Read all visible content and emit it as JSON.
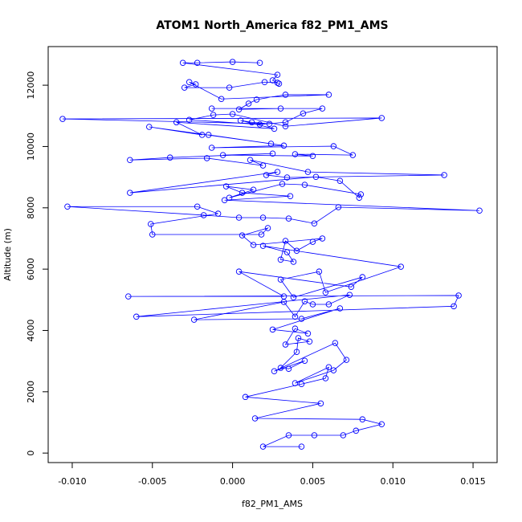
{
  "chart_data": {
    "type": "scatter_line",
    "title": "ATOM1 North_America f82_PM1_AMS",
    "x_label": "f82_PM1_AMS",
    "y_label": "Altitude (m)",
    "color": "#0000ff",
    "xlim": [
      -0.0115,
      0.0165
    ],
    "ylim": [
      -310,
      13260
    ],
    "xticks": [
      {
        "value": -0.01,
        "label": "-0.010"
      },
      {
        "value": -0.005,
        "label": "-0.005"
      },
      {
        "value": 0,
        "label": "0.000"
      },
      {
        "value": 0.005,
        "label": "0.005"
      },
      {
        "value": 0.01,
        "label": "0.010"
      },
      {
        "value": 0.015,
        "label": "0.015"
      }
    ],
    "yticks": [
      0,
      2000,
      4000,
      6000,
      8000,
      10000,
      12000
    ],
    "x": [
      0.0043,
      0.0019,
      0.0035,
      0.0051,
      0.0069,
      0.0077,
      0.0093,
      0.0081,
      0.0014,
      0.0055,
      0.0008,
      0.0043,
      0.0058,
      0.006,
      0.0039,
      0.0063,
      0.0071,
      0.0064,
      0.0026,
      0.0045,
      0.0035,
      0.003,
      0.004,
      0.0041,
      0.0048,
      0.0033,
      0.0039,
      0.0047,
      0.0025,
      0.0067,
      0.0043,
      -0.0024,
      0.0032,
      0.0039,
      0.0045,
      0.005,
      0.006,
      0.0073,
      -0.006,
      0.0138,
      0.0141,
      -0.0065,
      0.0032,
      0.0004,
      0.0074,
      0.0081,
      0.0038,
      0.003,
      0.0054,
      0.0058,
      0.0105,
      0.0019,
      0.0034,
      0.0038,
      0.003,
      0.0033,
      0.004,
      0.005,
      0.0056,
      0.0013,
      0.0006,
      0.0022,
      0.0018,
      -0.005,
      -0.0051,
      -0.0009,
      -0.0022,
      -0.0103,
      -0.0018,
      0.0004,
      0.0019,
      0.0035,
      0.0051,
      0.0066,
      0.0154,
      -0.0005,
      0.0036,
      0.0006,
      -0.0004,
      0.0013,
      -0.0002,
      0.0031,
      0.0045,
      0.008,
      0.0079,
      0.0067,
      0.0052,
      -0.0064,
      0.0028,
      0.0021,
      0.0034,
      0.0132,
      0.0047,
      0.0011,
      0.0019,
      -0.0016,
      -0.0064,
      -0.0039,
      0.0025,
      -0.0006,
      0.005,
      0.0039,
      0.0075,
      0.0063,
      -0.0013,
      0.0032,
      -0.0015,
      0.0024,
      -0.0052,
      -0.0019,
      -0.0035,
      0.0026,
      0.0005,
      0.0012,
      0.0023,
      -0.0106,
      0.0093,
      0.0033,
      0.0,
      -0.0012,
      -0.0027,
      0.0017,
      0.0033,
      0.0044,
      0.0056,
      -0.0013,
      0.003,
      0.0004,
      0.001,
      0.0015,
      0.0033,
      0.006,
      -0.0007,
      -0.0027,
      -0.0023,
      -0.003,
      -0.0002,
      0.002,
      0.0028,
      0.0029,
      0.0025,
      0.0028,
      -0.0031,
      -0.0022,
      0.0,
      0.0017
    ],
    "values": [
      210,
      210,
      580,
      580,
      580,
      730,
      940,
      1100,
      1130,
      1620,
      1830,
      2250,
      2440,
      2800,
      2280,
      2700,
      3040,
      3590,
      2670,
      3010,
      2750,
      2780,
      3300,
      3750,
      3640,
      3540,
      4060,
      3900,
      4030,
      4720,
      4380,
      4350,
      4930,
      4450,
      4950,
      4850,
      4850,
      5160,
      4450,
      4790,
      5140,
      5110,
      5110,
      5920,
      5420,
      5740,
      5080,
      5660,
      5920,
      5240,
      6080,
      6760,
      6550,
      6240,
      6310,
      6920,
      6600,
      6890,
      7000,
      6790,
      7100,
      7340,
      7130,
      7130,
      7470,
      7810,
      8040,
      8040,
      7760,
      7680,
      7680,
      7650,
      7490,
      8020,
      7910,
      8250,
      8380,
      8490,
      8700,
      8590,
      8330,
      8780,
      8750,
      8440,
      8330,
      8880,
      9010,
      8490,
      9170,
      9070,
      8990,
      9070,
      9170,
      9560,
      9380,
      9620,
      9560,
      9640,
      9770,
      9720,
      9690,
      9750,
      9720,
      10010,
      9960,
      10030,
      10380,
      10090,
      10640,
      10380,
      10790,
      10580,
      10850,
      10790,
      10740,
      10900,
      10930,
      10660,
      11060,
      11030,
      10870,
      10720,
      10790,
      11080,
      11240,
      11240,
      11240,
      11210,
      11400,
      11530,
      11690,
      11690,
      11550,
      12100,
      12030,
      11920,
      11920,
      12100,
      12080,
      12050,
      12160,
      12340,
      12730,
      12730,
      12760,
      12730
    ]
  }
}
